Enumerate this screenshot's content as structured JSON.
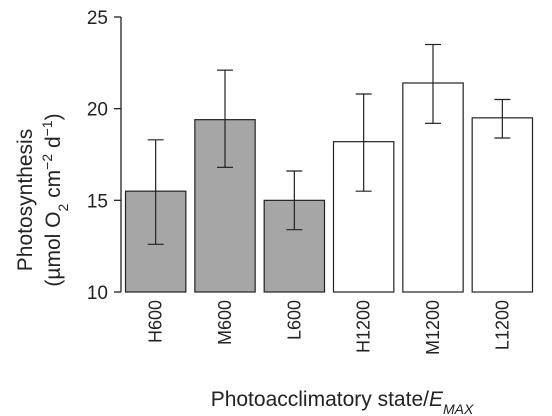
{
  "chart_data": {
    "type": "bar",
    "categories": [
      "H600",
      "M600",
      "L600",
      "H1200",
      "M1200",
      "L1200"
    ],
    "values": [
      15.5,
      19.4,
      15.0,
      18.2,
      21.4,
      19.5
    ],
    "error_low": [
      12.6,
      16.8,
      13.4,
      15.5,
      19.2,
      18.4
    ],
    "error_high": [
      18.3,
      22.1,
      16.6,
      20.8,
      23.5,
      20.5
    ],
    "bar_colors": [
      "#a6a6a6",
      "#a6a6a6",
      "#a6a6a6",
      "#ffffff",
      "#ffffff",
      "#ffffff"
    ],
    "ylabel_line1": "Photosynthesis",
    "ylabel_line2": {
      "pre": "(µmol O",
      "sub": "2",
      "mid": " cm",
      "sup1": "−2",
      "mid2": " d",
      "sup2": "−1",
      "post": ")"
    },
    "xlabel": {
      "pre": "Photoacclimatory state/",
      "italic": "E",
      "sub": "MAX"
    },
    "ylim": [
      10,
      25
    ],
    "yticks": [
      10,
      15,
      20,
      25
    ],
    "grid": false
  }
}
